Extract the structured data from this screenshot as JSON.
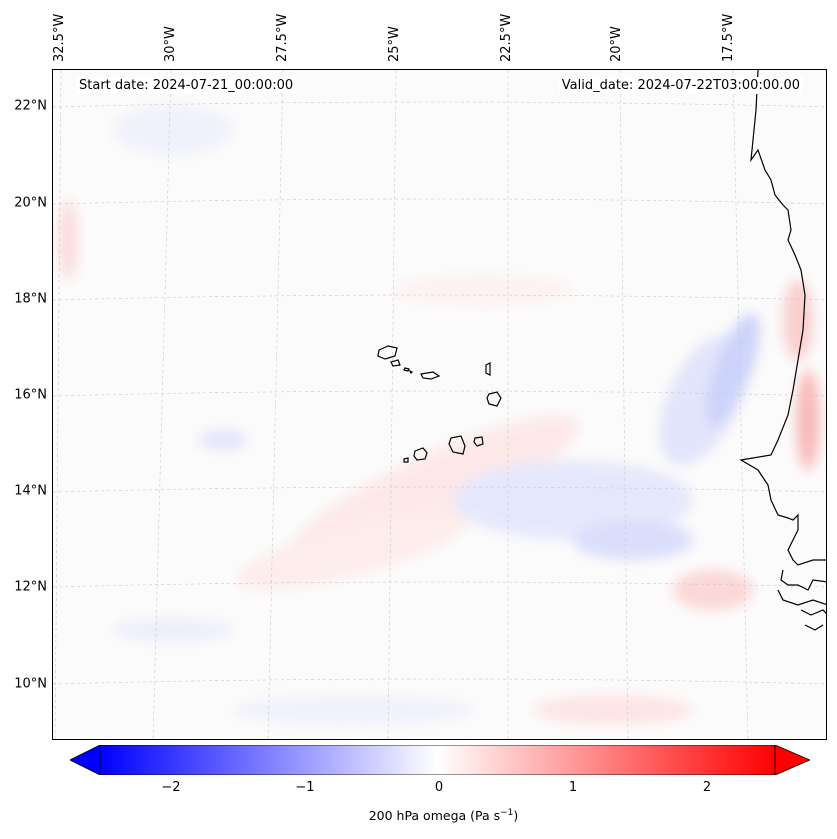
{
  "map": {
    "start_date": "Start date: 2024-07-21_00:00:00",
    "valid_date": "Valid_date: 2024-07-22T03:00:00.00",
    "lat_labels": [
      "22°N",
      "20°N",
      "18°N",
      "16°N",
      "14°N",
      "12°N",
      "10°N"
    ],
    "lon_labels": [
      "32.5°W",
      "30°W",
      "27.5°W",
      "25°W",
      "22.5°W",
      "20°W",
      "17.5°W"
    ],
    "features": [
      "Cape Verde islands",
      "West African coastline"
    ]
  },
  "colorbar": {
    "ticks": [
      "−2",
      "−1",
      "0",
      "1",
      "2"
    ],
    "label_prefix": "200 hPa omega (Pa s",
    "label_exp": "−1",
    "label_suffix": ")",
    "colors": {
      "low": "#0000ff",
      "mid": "#ffffff",
      "high": "#ff0000"
    },
    "range": [
      -2.6,
      2.6
    ]
  }
}
